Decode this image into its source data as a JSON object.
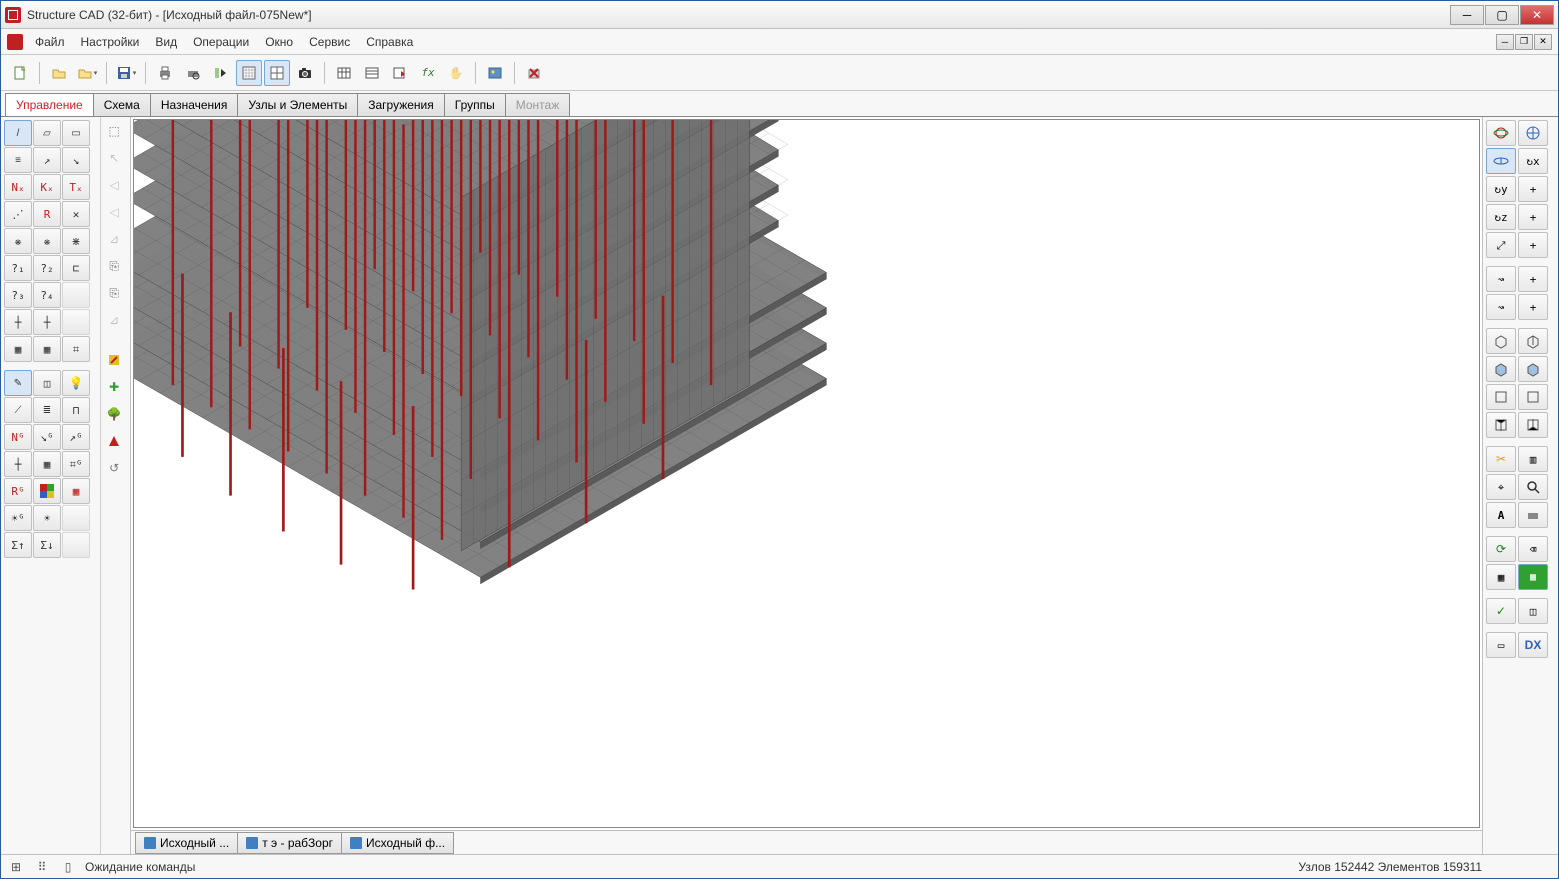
{
  "colors": {
    "accent_red": "#d02020",
    "column": "#a01818",
    "slab_fill": "#808080",
    "slab_mesh": "#303030",
    "wall_fill": "#707070",
    "panel": "#f0f0f0",
    "background": "#ffffff"
  },
  "title": "Structure CAD (32-бит) - [Исходный файл-075New*]",
  "menu": [
    "Файл",
    "Настройки",
    "Вид",
    "Операции",
    "Окно",
    "Сервис",
    "Справка"
  ],
  "tabs": [
    {
      "label": "Управление",
      "active": true
    },
    {
      "label": "Схема"
    },
    {
      "label": "Назначения"
    },
    {
      "label": "Узлы и Элементы"
    },
    {
      "label": "Загружения"
    },
    {
      "label": "Группы"
    },
    {
      "label": "Монтаж",
      "disabled": true
    }
  ],
  "doc_tabs": [
    {
      "label": "Исходный ..."
    },
    {
      "label": "т э - рабЗорг"
    },
    {
      "label": "Исходный ф..."
    }
  ],
  "status": {
    "message": "Ожидание команды",
    "nodes_label": "Узлов",
    "nodes": 152442,
    "elements_label": "Элементов",
    "elements": 159311
  },
  "right_tools": {
    "dx_label": "DX"
  },
  "model": {
    "description": "3D finite-element building model, isometric view",
    "view": "isometric-south-west-top",
    "floor_count": 10,
    "column_count_approx": 40
  }
}
